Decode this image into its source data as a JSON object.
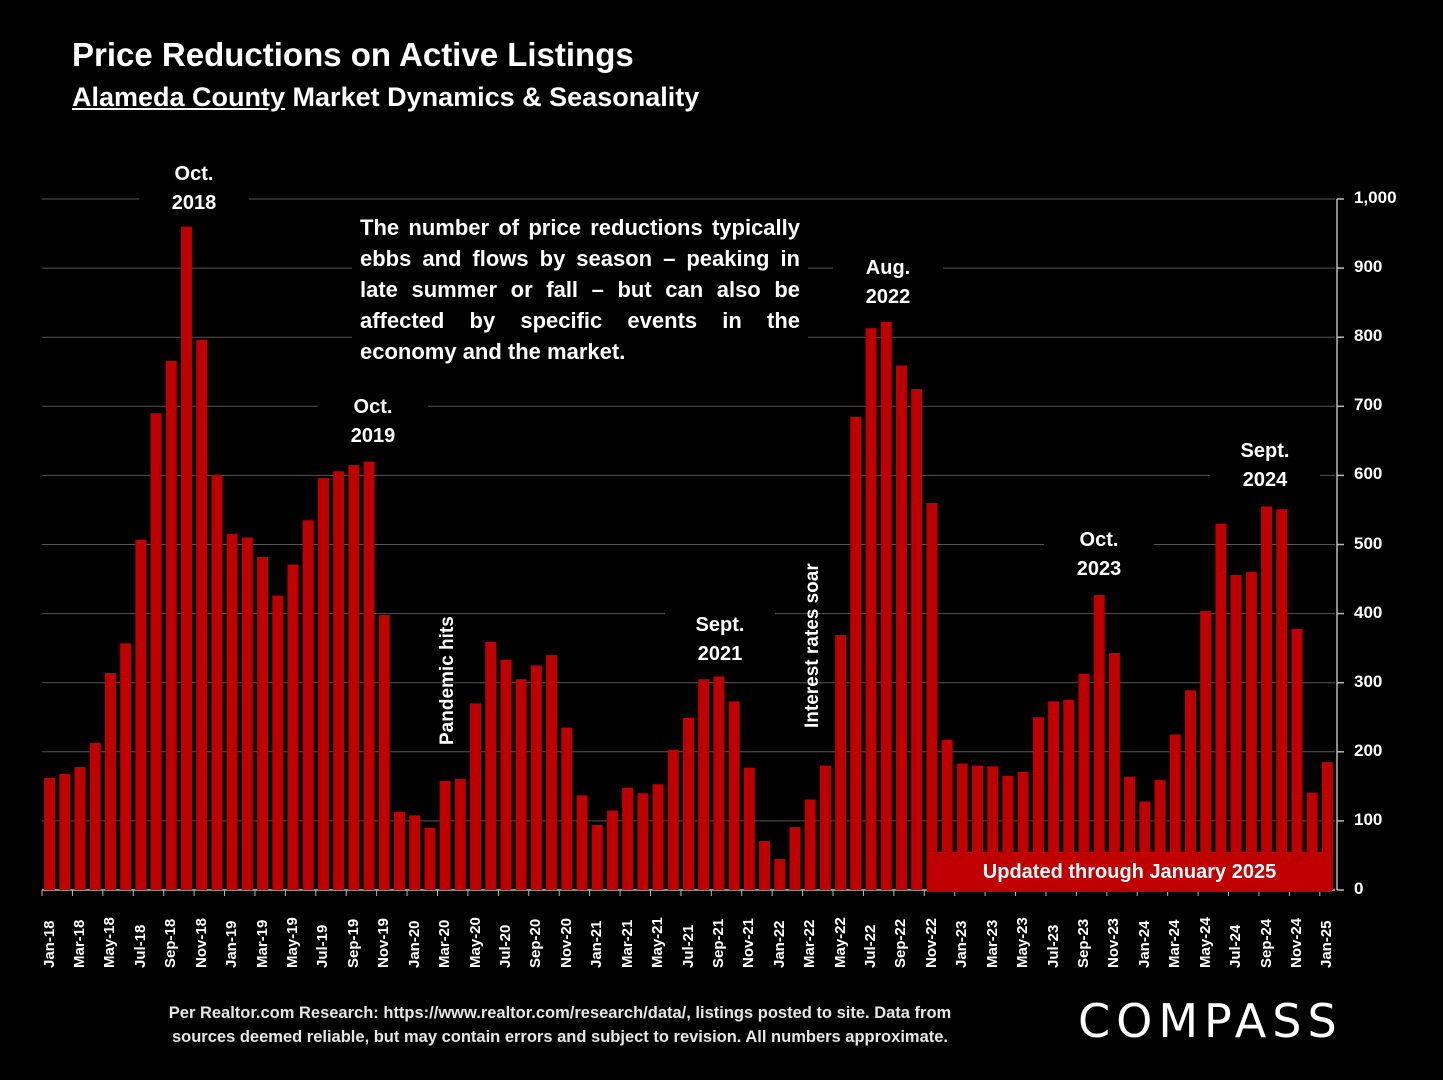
{
  "header": {
    "title": "Price Reductions on Active Listings",
    "subtitle_underlined": "Alameda County",
    "subtitle_rest": " Market Dynamics & Seasonality"
  },
  "annotation": "The number of price reductions typically ebbs and flows by season – peaking in late summer or fall – but can also be affected by specific events in the economy and the market.",
  "peak_labels": [
    {
      "line1": "Oct.",
      "line2": "2018"
    },
    {
      "line1": "Oct.",
      "line2": "2019"
    },
    {
      "line1": "Sept.",
      "line2": "2021"
    },
    {
      "line1": "Aug.",
      "line2": "2022"
    },
    {
      "line1": "Oct.",
      "line2": "2023"
    },
    {
      "line1": "Sept.",
      "line2": "2024"
    }
  ],
  "event_labels": {
    "pandemic": "Pandemic hits",
    "rates": "Interest rates soar"
  },
  "update_banner": "Updated through January 2025",
  "footnote": {
    "line1": "Per Realtor.com Research:  https://www.realtor.com/research/data/, listings posted to site. Data from",
    "line2": "sources deemed reliable, but may contain errors and subject to revision. All numbers approximate."
  },
  "logo": "COMPASS",
  "colors": {
    "bar": "#c00000",
    "background": "#000000",
    "grid": "#555555"
  },
  "chart_data": {
    "type": "bar",
    "ylim": [
      0,
      1000
    ],
    "yticks": [
      "0",
      "100",
      "200",
      "300",
      "400",
      "500",
      "600",
      "700",
      "800",
      "900",
      "1,000"
    ],
    "grid": true,
    "categories": [
      "Jan-18",
      "Feb-18",
      "Mar-18",
      "Apr-18",
      "May-18",
      "Jun-18",
      "Jul-18",
      "Aug-18",
      "Sep-18",
      "Oct-18",
      "Nov-18",
      "Dec-18",
      "Jan-19",
      "Feb-19",
      "Mar-19",
      "Apr-19",
      "May-19",
      "Jun-19",
      "Jul-19",
      "Aug-19",
      "Sep-19",
      "Oct-19",
      "Nov-19",
      "Dec-19",
      "Jan-20",
      "Feb-20",
      "Mar-20",
      "Apr-20",
      "May-20",
      "Jun-20",
      "Jul-20",
      "Aug-20",
      "Sep-20",
      "Oct-20",
      "Nov-20",
      "Dec-20",
      "Jan-21",
      "Feb-21",
      "Mar-21",
      "Apr-21",
      "May-21",
      "Jun-21",
      "Jul-21",
      "Aug-21",
      "Sep-21",
      "Oct-21",
      "Nov-21",
      "Dec-21",
      "Jan-22",
      "Feb-22",
      "Mar-22",
      "Apr-22",
      "May-22",
      "Jun-22",
      "Jul-22",
      "Aug-22",
      "Sep-22",
      "Oct-22",
      "Nov-22",
      "Dec-22",
      "Jan-23",
      "Feb-23",
      "Mar-23",
      "Apr-23",
      "May-23",
      "Jun-23",
      "Jul-23",
      "Aug-23",
      "Sep-23",
      "Oct-23",
      "Nov-23",
      "Dec-23",
      "Jan-24",
      "Feb-24",
      "Mar-24",
      "Apr-24",
      "May-24",
      "Jun-24",
      "Jul-24",
      "Aug-24",
      "Sep-24",
      "Oct-24",
      "Nov-24",
      "Dec-24",
      "Jan-25"
    ],
    "xtick_labels": [
      "Jan-18",
      "Mar-18",
      "May-18",
      "Jul-18",
      "Sep-18",
      "Nov-18",
      "Jan-19",
      "Mar-19",
      "May-19",
      "Jul-19",
      "Sep-19",
      "Nov-19",
      "Jan-20",
      "Mar-20",
      "May-20",
      "Jul-20",
      "Sep-20",
      "Nov-20",
      "Jan-21",
      "Mar-21",
      "May-21",
      "Jul-21",
      "Sep-21",
      "Nov-21",
      "Jan-22",
      "Mar-22",
      "May-22",
      "Jul-22",
      "Sep-22",
      "Nov-22",
      "Jan-23",
      "Mar-23",
      "May-23",
      "Jul-23",
      "Sep-23",
      "Nov-23",
      "Jan-24",
      "Mar-24",
      "May-24",
      "Jul-24",
      "Sep-24",
      "Nov-24",
      "Jan-25"
    ],
    "values": [
      162,
      168,
      178,
      213,
      314,
      357,
      507,
      690,
      766,
      960,
      796,
      601,
      515,
      510,
      482,
      426,
      471,
      535,
      596,
      606,
      615,
      620,
      398,
      113,
      108,
      90,
      158,
      161,
      270,
      359,
      333,
      305,
      325,
      340,
      235,
      137,
      94,
      115,
      148,
      140,
      153,
      203,
      249,
      305,
      309,
      273,
      177,
      71,
      45,
      91,
      131,
      180,
      369,
      685,
      813,
      822,
      759,
      725,
      560,
      217,
      183,
      180,
      179,
      165,
      171,
      250,
      273,
      275,
      313,
      427,
      343,
      164,
      128,
      159,
      225,
      289,
      404,
      530,
      456,
      460,
      555,
      551,
      378,
      141,
      185
    ]
  }
}
